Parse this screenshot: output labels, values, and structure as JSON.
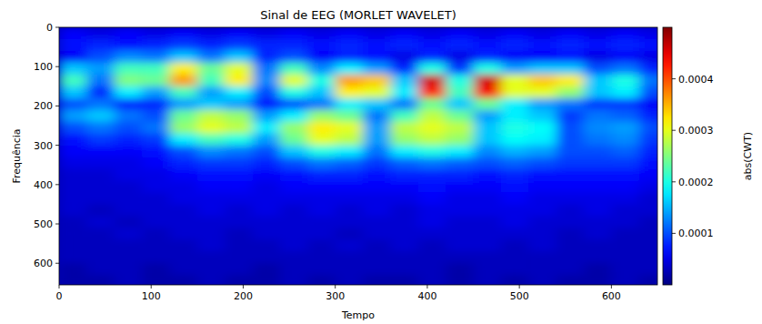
{
  "chart_data": {
    "type": "heatmap",
    "title": "Sinal de EEG (MORLET WAVELET)",
    "x_label": "Tempo",
    "y_label": "Frequência",
    "colorbar_label": "abs(CWT)",
    "xlim": [
      0,
      650
    ],
    "ylim": [
      655,
      0
    ],
    "xticks": [
      0,
      100,
      200,
      300,
      400,
      500,
      600
    ],
    "yticks": [
      0,
      100,
      200,
      300,
      400,
      500,
      600
    ],
    "colorbar_range": [
      0,
      0.0005
    ],
    "colorbar_ticks": [
      0.0001,
      0.0002,
      0.0003,
      0.0004
    ],
    "x": [
      15,
      45,
      75,
      105,
      135,
      165,
      195,
      225,
      255,
      285,
      315,
      345,
      375,
      405,
      435,
      465,
      495,
      525,
      555,
      585,
      615,
      645
    ],
    "y": [
      15,
      45,
      75,
      105,
      135,
      165,
      195,
      225,
      255,
      285,
      315,
      345,
      375,
      405,
      435,
      465,
      495,
      525,
      555,
      585,
      615,
      645
    ],
    "z": [
      [
        6e-05,
        5e-05,
        6e-05,
        5e-05,
        6e-05,
        5e-05,
        6e-05,
        5e-05,
        6e-05,
        5e-05,
        6e-05,
        5e-05,
        6e-05,
        5e-05,
        6e-05,
        5e-05,
        6e-05,
        5e-05,
        6e-05,
        5e-05,
        6e-05,
        5e-05
      ],
      [
        7e-05,
        8e-05,
        7e-05,
        8e-05,
        9e-05,
        8e-05,
        9e-05,
        8e-05,
        8e-05,
        7e-05,
        8e-05,
        7e-05,
        8e-05,
        7e-05,
        8e-05,
        7e-05,
        8e-05,
        7e-05,
        8e-05,
        7e-05,
        8e-05,
        7e-05
      ],
      [
        6e-05,
        0.0001,
        0.00013,
        0.00012,
        0.00016,
        0.00012,
        0.00016,
        8e-05,
        0.0001,
        6e-05,
        8e-05,
        7e-05,
        5e-05,
        8e-05,
        5e-05,
        8e-05,
        6e-05,
        6e-05,
        7e-05,
        5e-05,
        6e-05,
        5e-05
      ],
      [
        0.00016,
        0.00014,
        0.00022,
        0.00022,
        0.00032,
        0.00024,
        0.0003,
        0.00012,
        0.00022,
        0.00013,
        0.00018,
        0.00014,
        8e-05,
        0.0002,
        9e-05,
        0.0002,
        0.00014,
        0.00016,
        0.00016,
        0.0001,
        0.00012,
        8e-05
      ],
      [
        0.00022,
        0.00012,
        0.00025,
        0.00024,
        0.00036,
        0.00022,
        0.00032,
        0.00013,
        0.0003,
        0.0002,
        0.00036,
        0.00034,
        0.00016,
        0.00046,
        0.0002,
        0.00046,
        0.0003,
        0.00034,
        0.00032,
        0.00016,
        0.0002,
        0.00012
      ],
      [
        0.00016,
        8e-05,
        0.00018,
        0.00014,
        0.00022,
        0.00014,
        0.00018,
        0.0001,
        0.0002,
        0.00016,
        0.00032,
        0.0003,
        0.00018,
        0.00042,
        0.00022,
        0.00044,
        0.0003,
        0.0003,
        0.00026,
        0.00016,
        0.00018,
        0.0001
      ],
      [
        0.0001,
        0.00012,
        8e-05,
        8e-05,
        0.00014,
        0.00016,
        0.00014,
        7e-05,
        0.0001,
        0.00012,
        0.00018,
        0.00016,
        0.00012,
        0.00024,
        0.00016,
        0.00024,
        0.00018,
        0.00014,
        0.00012,
        9e-05,
        9e-05,
        6e-05
      ],
      [
        0.00014,
        0.00016,
        0.00012,
        0.0001,
        0.00024,
        0.00028,
        0.00026,
        0.00014,
        0.00018,
        0.00026,
        0.00024,
        0.00012,
        0.00022,
        0.00028,
        0.00024,
        0.00014,
        0.00018,
        0.00016,
        9e-05,
        0.00012,
        0.00011,
        8e-05
      ],
      [
        0.0001,
        0.00012,
        0.0001,
        0.00012,
        0.00026,
        0.0003,
        0.00028,
        0.00018,
        0.00026,
        0.00032,
        0.0003,
        0.00014,
        0.00028,
        0.0003,
        0.00028,
        0.00016,
        0.0002,
        0.00019,
        0.0001,
        0.00013,
        0.00014,
        0.0001
      ],
      [
        7e-05,
        9e-05,
        8e-05,
        9e-05,
        0.00018,
        0.00022,
        0.0002,
        0.00014,
        0.00024,
        0.0003,
        0.00028,
        0.00014,
        0.00026,
        0.00028,
        0.00026,
        0.00016,
        0.00019,
        0.00018,
        0.0001,
        0.00012,
        0.00013,
        9e-05
      ],
      [
        6e-05,
        6e-05,
        6e-05,
        7e-05,
        0.0001,
        0.00013,
        0.00012,
        0.0001,
        0.00016,
        0.0002,
        0.00018,
        0.00012,
        0.00018,
        0.0002,
        0.00018,
        0.00013,
        0.00015,
        0.00014,
        0.0001,
        0.0001,
        0.00011,
        8e-05
      ],
      [
        5e-05,
        5e-05,
        5e-05,
        6e-05,
        8e-05,
        9e-05,
        9e-05,
        8e-05,
        0.0001,
        0.00012,
        0.00011,
        9e-05,
        0.00011,
        0.00012,
        0.00011,
        0.0001,
        0.00011,
        0.0001,
        9e-05,
        9e-05,
        9e-05,
        7e-05
      ],
      [
        4e-05,
        4e-05,
        5e-05,
        5e-05,
        6e-05,
        7e-05,
        7e-05,
        6e-05,
        7e-05,
        8e-05,
        8e-05,
        7e-05,
        8e-05,
        8e-05,
        8e-05,
        7e-05,
        8e-05,
        7e-05,
        7e-05,
        7e-05,
        7e-05,
        6e-05
      ],
      [
        4e-05,
        4e-05,
        4e-05,
        5e-05,
        5e-05,
        6e-05,
        6e-05,
        5e-05,
        6e-05,
        6e-05,
        6e-05,
        6e-05,
        6e-05,
        7e-05,
        6e-05,
        6e-05,
        7e-05,
        6e-05,
        6e-05,
        6e-05,
        6e-05,
        5e-05
      ],
      [
        4e-05,
        4e-05,
        4e-05,
        4e-05,
        5e-05,
        5e-05,
        5e-05,
        5e-05,
        5e-05,
        5e-05,
        5e-05,
        5e-05,
        5e-05,
        6e-05,
        5e-05,
        5e-05,
        6e-05,
        5e-05,
        5e-05,
        5e-05,
        5e-05,
        4e-05
      ],
      [
        4e-05,
        3e-05,
        4e-05,
        4e-05,
        4e-05,
        5e-05,
        4e-05,
        5e-05,
        4e-05,
        5e-05,
        4e-05,
        5e-05,
        4e-05,
        5e-05,
        5e-05,
        5e-05,
        5e-05,
        5e-05,
        4e-05,
        5e-05,
        4e-05,
        4e-05
      ],
      [
        3e-05,
        4e-05,
        3e-05,
        4e-05,
        4e-05,
        4e-05,
        4e-05,
        4e-05,
        4e-05,
        4e-05,
        4e-05,
        4e-05,
        4e-05,
        5e-05,
        4e-05,
        4e-05,
        5e-05,
        4e-05,
        4e-05,
        4e-05,
        4e-05,
        3e-05
      ],
      [
        3e-05,
        3e-05,
        4e-05,
        3e-05,
        4e-05,
        4e-05,
        3e-05,
        4e-05,
        4e-05,
        4e-05,
        3e-05,
        4e-05,
        4e-05,
        4e-05,
        4e-05,
        4e-05,
        4e-05,
        4e-05,
        3e-05,
        4e-05,
        3e-05,
        3e-05
      ],
      [
        3e-05,
        3e-05,
        3e-05,
        3e-05,
        3e-05,
        4e-05,
        3e-05,
        3e-05,
        4e-05,
        3e-05,
        4e-05,
        3e-05,
        4e-05,
        3e-05,
        4e-05,
        4e-05,
        3e-05,
        4e-05,
        3e-05,
        3e-05,
        3e-05,
        3e-05
      ],
      [
        3e-05,
        3e-05,
        3e-05,
        3e-05,
        3e-05,
        3e-05,
        3e-05,
        3e-05,
        3e-05,
        3e-05,
        3e-05,
        3e-05,
        3e-05,
        3e-05,
        3e-05,
        3e-05,
        3e-05,
        3e-05,
        3e-05,
        3e-05,
        3e-05,
        3e-05
      ],
      [
        2e-05,
        3e-05,
        3e-05,
        2e-05,
        3e-05,
        3e-05,
        3e-05,
        2e-05,
        3e-05,
        3e-05,
        3e-05,
        3e-05,
        3e-05,
        3e-05,
        2e-05,
        3e-05,
        3e-05,
        3e-05,
        3e-05,
        2e-05,
        3e-05,
        3e-05
      ],
      [
        2e-05,
        2e-05,
        3e-05,
        2e-05,
        2e-05,
        3e-05,
        2e-05,
        2e-05,
        3e-05,
        2e-05,
        3e-05,
        2e-05,
        2e-05,
        3e-05,
        2e-05,
        3e-05,
        2e-05,
        3e-05,
        2e-05,
        2e-05,
        3e-05,
        2e-05
      ]
    ]
  }
}
